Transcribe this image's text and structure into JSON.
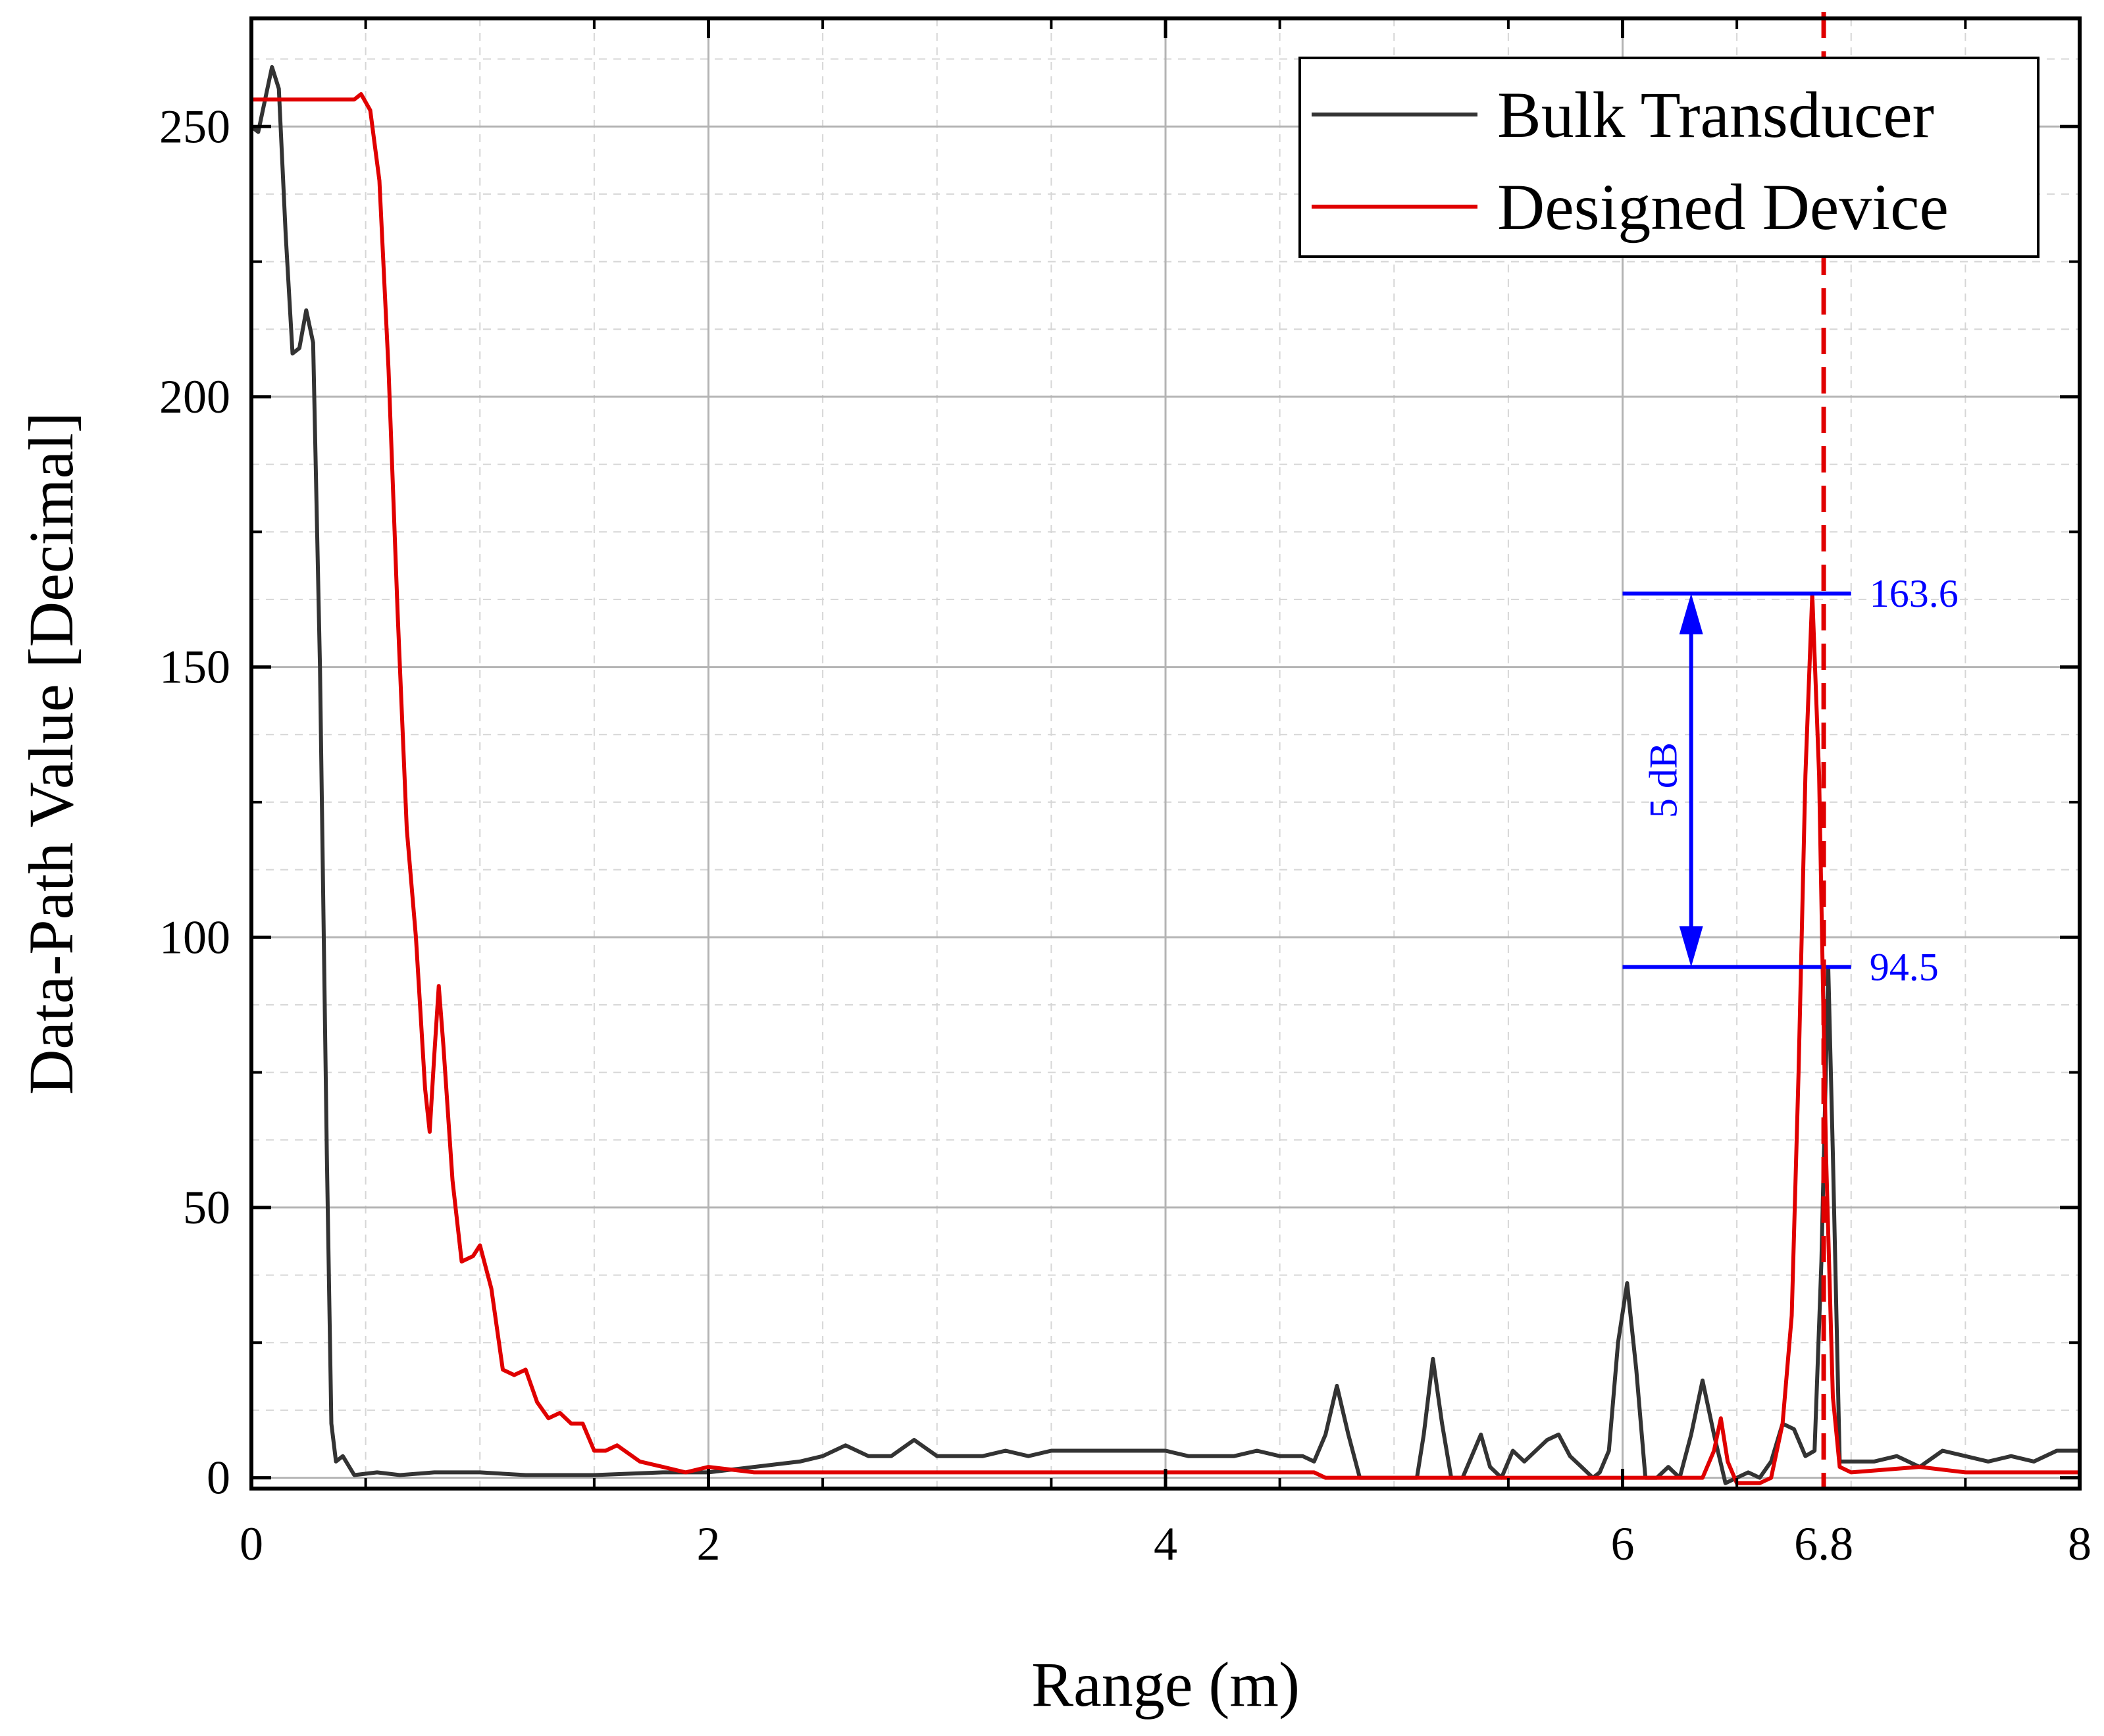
{
  "chart_data": {
    "type": "line",
    "title": "",
    "xlabel": "Range (m)",
    "ylabel": "Data-Path Value [Decimal]",
    "xlim": [
      0,
      8
    ],
    "ylim": [
      -2,
      270
    ],
    "xticks": [
      "0",
      "2",
      "4",
      "6",
      "8"
    ],
    "yticks": [
      "0",
      "50",
      "100",
      "150",
      "200",
      "250"
    ],
    "legend_position": "top-right",
    "grid": true,
    "series": [
      {
        "name": "Bulk Transducer",
        "color": "#333333",
        "points": [
          [
            0,
            250
          ],
          [
            0.03,
            249
          ],
          [
            0.06,
            255
          ],
          [
            0.09,
            261
          ],
          [
            0.12,
            257
          ],
          [
            0.15,
            230
          ],
          [
            0.18,
            208
          ],
          [
            0.21,
            209
          ],
          [
            0.24,
            216
          ],
          [
            0.27,
            210
          ],
          [
            0.3,
            150
          ],
          [
            0.33,
            60
          ],
          [
            0.35,
            10
          ],
          [
            0.37,
            3
          ],
          [
            0.4,
            4
          ],
          [
            0.45,
            0.5
          ],
          [
            0.55,
            1
          ],
          [
            0.65,
            0.5
          ],
          [
            0.8,
            1
          ],
          [
            1.0,
            1
          ],
          [
            1.2,
            0.5
          ],
          [
            1.5,
            0.5
          ],
          [
            1.8,
            1
          ],
          [
            2.0,
            1
          ],
          [
            2.2,
            2
          ],
          [
            2.4,
            3
          ],
          [
            2.5,
            4
          ],
          [
            2.6,
            6
          ],
          [
            2.7,
            4
          ],
          [
            2.8,
            4
          ],
          [
            2.9,
            7
          ],
          [
            3.0,
            4
          ],
          [
            3.2,
            4
          ],
          [
            3.3,
            5
          ],
          [
            3.4,
            4
          ],
          [
            3.5,
            5
          ],
          [
            3.6,
            5
          ],
          [
            3.7,
            5
          ],
          [
            3.8,
            5
          ],
          [
            3.9,
            5
          ],
          [
            4.0,
            5
          ],
          [
            4.1,
            4
          ],
          [
            4.2,
            4
          ],
          [
            4.3,
            4
          ],
          [
            4.4,
            5
          ],
          [
            4.5,
            4
          ],
          [
            4.6,
            4
          ],
          [
            4.65,
            3
          ],
          [
            4.7,
            8
          ],
          [
            4.75,
            17
          ],
          [
            4.8,
            8
          ],
          [
            4.85,
            0
          ],
          [
            4.9,
            0
          ],
          [
            5.0,
            0
          ],
          [
            5.1,
            0
          ],
          [
            5.13,
            8
          ],
          [
            5.17,
            22
          ],
          [
            5.21,
            10
          ],
          [
            5.25,
            0
          ],
          [
            5.3,
            0
          ],
          [
            5.38,
            8
          ],
          [
            5.42,
            2
          ],
          [
            5.47,
            0
          ],
          [
            5.52,
            5
          ],
          [
            5.57,
            3
          ],
          [
            5.62,
            5
          ],
          [
            5.67,
            7
          ],
          [
            5.72,
            8
          ],
          [
            5.77,
            4
          ],
          [
            5.82,
            2
          ],
          [
            5.87,
            0
          ],
          [
            5.9,
            1
          ],
          [
            5.94,
            5
          ],
          [
            5.98,
            25
          ],
          [
            6.02,
            36
          ],
          [
            6.06,
            20
          ],
          [
            6.1,
            0
          ],
          [
            6.15,
            0
          ],
          [
            6.2,
            2
          ],
          [
            6.25,
            0
          ],
          [
            6.3,
            8
          ],
          [
            6.35,
            18
          ],
          [
            6.4,
            8
          ],
          [
            6.45,
            -1
          ],
          [
            6.5,
            0
          ],
          [
            6.55,
            1
          ],
          [
            6.6,
            0
          ],
          [
            6.65,
            3
          ],
          [
            6.7,
            10
          ],
          [
            6.75,
            9
          ],
          [
            6.8,
            4
          ],
          [
            6.84,
            5
          ],
          [
            6.87,
            40
          ],
          [
            6.9,
            94.5
          ],
          [
            6.92,
            60
          ],
          [
            6.95,
            3
          ],
          [
            7.0,
            3
          ],
          [
            7.1,
            3
          ],
          [
            7.2,
            4
          ],
          [
            7.3,
            2
          ],
          [
            7.4,
            5
          ],
          [
            7.5,
            4
          ],
          [
            7.6,
            3
          ],
          [
            7.7,
            4
          ],
          [
            7.8,
            3
          ],
          [
            7.9,
            5
          ],
          [
            8.0,
            5
          ]
        ]
      },
      {
        "name": "Designed Device",
        "color": "#e00000",
        "points": [
          [
            0,
            255
          ],
          [
            0.3,
            255
          ],
          [
            0.45,
            255
          ],
          [
            0.48,
            256
          ],
          [
            0.52,
            253
          ],
          [
            0.56,
            240
          ],
          [
            0.6,
            205
          ],
          [
            0.64,
            160
          ],
          [
            0.68,
            120
          ],
          [
            0.72,
            100
          ],
          [
            0.76,
            72
          ],
          [
            0.78,
            64
          ],
          [
            0.8,
            78
          ],
          [
            0.82,
            91
          ],
          [
            0.84,
            80
          ],
          [
            0.88,
            55
          ],
          [
            0.92,
            40
          ],
          [
            0.97,
            41
          ],
          [
            1.0,
            43
          ],
          [
            1.05,
            35
          ],
          [
            1.1,
            20
          ],
          [
            1.15,
            19
          ],
          [
            1.2,
            20
          ],
          [
            1.25,
            14
          ],
          [
            1.3,
            11
          ],
          [
            1.35,
            12
          ],
          [
            1.4,
            10
          ],
          [
            1.45,
            10
          ],
          [
            1.5,
            5
          ],
          [
            1.55,
            5
          ],
          [
            1.6,
            6
          ],
          [
            1.7,
            3
          ],
          [
            1.8,
            2
          ],
          [
            1.9,
            1
          ],
          [
            2.0,
            2
          ],
          [
            2.2,
            1
          ],
          [
            2.4,
            1
          ],
          [
            2.6,
            1
          ],
          [
            3.0,
            1
          ],
          [
            3.5,
            1
          ],
          [
            4.0,
            1
          ],
          [
            4.5,
            1
          ],
          [
            4.65,
            1
          ],
          [
            4.7,
            0
          ],
          [
            5.0,
            0
          ],
          [
            5.5,
            0
          ],
          [
            6.0,
            0
          ],
          [
            6.1,
            0
          ],
          [
            6.35,
            0
          ],
          [
            6.4,
            5
          ],
          [
            6.43,
            11
          ],
          [
            6.46,
            3
          ],
          [
            6.5,
            -1
          ],
          [
            6.6,
            -1
          ],
          [
            6.65,
            0
          ],
          [
            6.7,
            10
          ],
          [
            6.74,
            30
          ],
          [
            6.77,
            75
          ],
          [
            6.8,
            130
          ],
          [
            6.83,
            163.6
          ],
          [
            6.86,
            130
          ],
          [
            6.89,
            60
          ],
          [
            6.92,
            15
          ],
          [
            6.95,
            2
          ],
          [
            7.0,
            1
          ],
          [
            7.3,
            2
          ],
          [
            7.5,
            1
          ],
          [
            7.7,
            1
          ],
          [
            8.0,
            1
          ]
        ]
      }
    ],
    "annotations": {
      "upper_value": 163.6,
      "upper_label": "163.6",
      "lower_value": 94.5,
      "lower_label": "94.5",
      "bracket_x": [
        6.0,
        7.0
      ],
      "arrow_x": 6.3,
      "span_label": "5 dB",
      "marker_x": 6.88,
      "marker_label": "6.8",
      "annotation_color": "#0000ff",
      "marker_color": "#e00000"
    }
  }
}
